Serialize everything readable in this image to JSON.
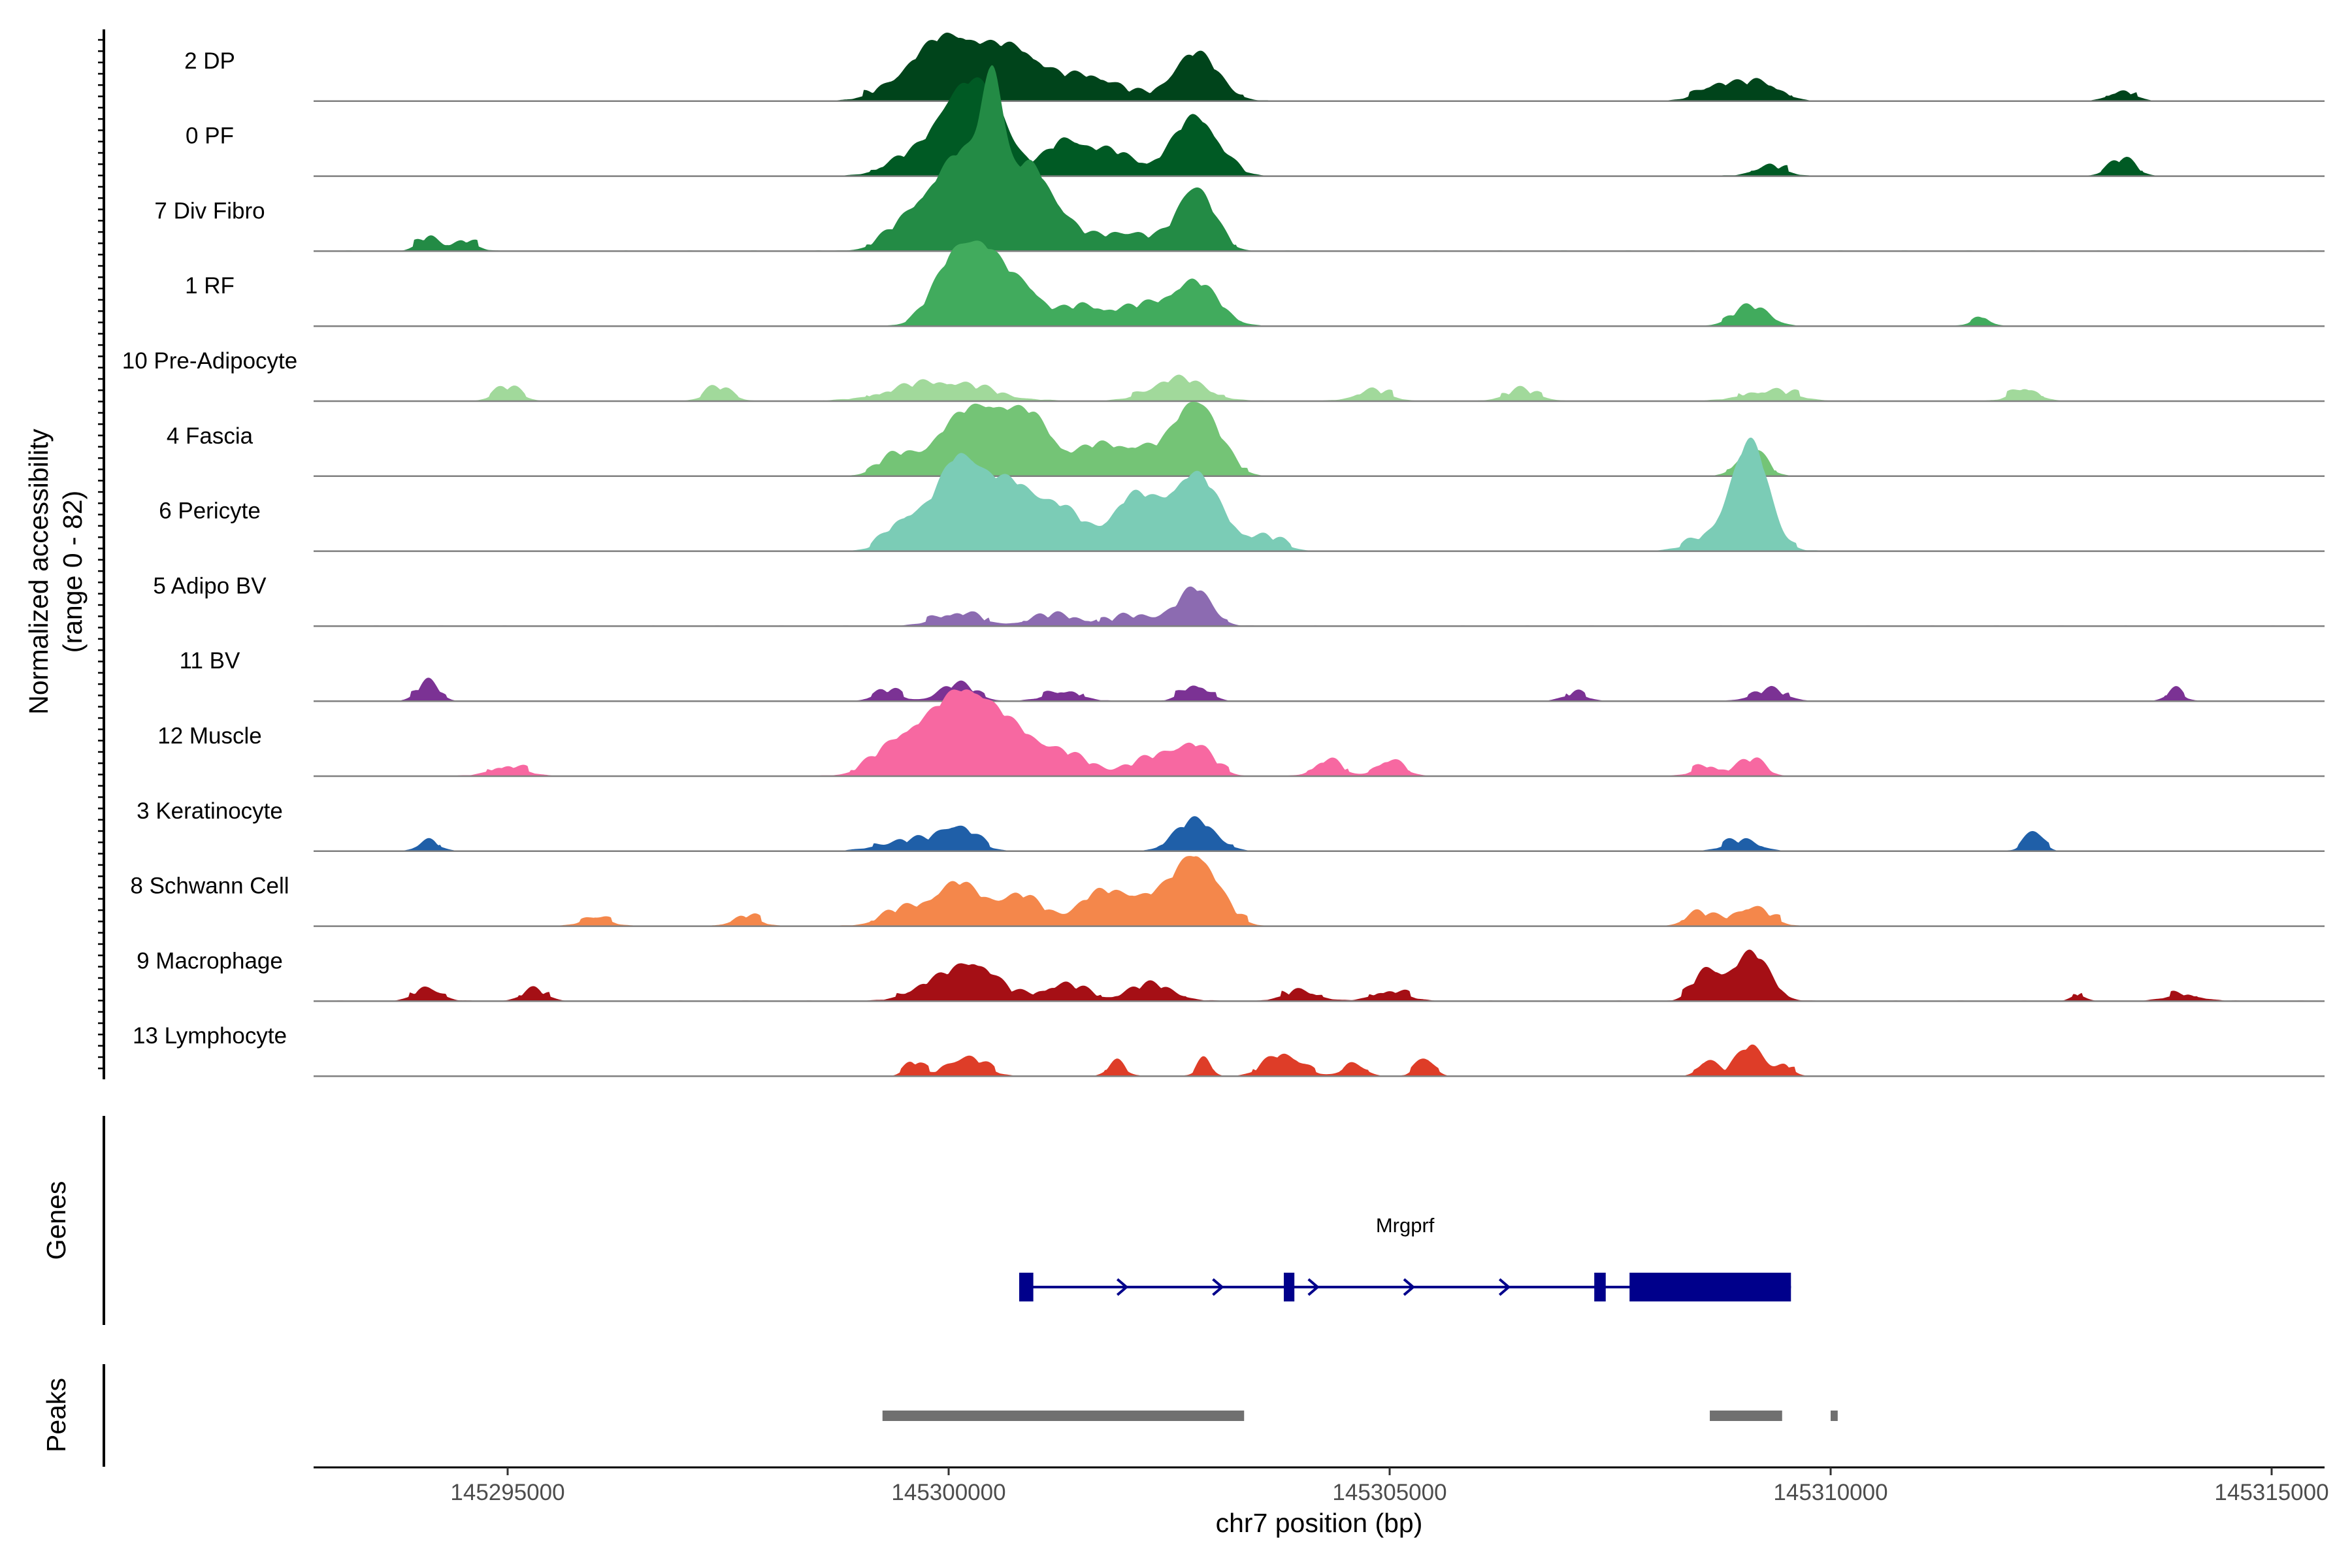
{
  "chart_data": {
    "type": "area",
    "region": {
      "chrom": "chr7",
      "start": 145292800,
      "end": 145315600
    },
    "ylabel": "Normalized accessibility",
    "ylabel_range": "(range 0 - 82)",
    "y_range": [
      0,
      82
    ],
    "xlabel": "chr7 position (bp)",
    "x_ticks": [
      145295000,
      145300000,
      145305000,
      145310000,
      145315000
    ],
    "tracks": [
      {
        "name": "2 DP",
        "color": "#00441b",
        "peaks": [
          [
            145300000,
            420,
            22
          ],
          [
            145300800,
            300,
            14
          ],
          [
            145302800,
            250,
            16
          ],
          [
            145301600,
            320,
            8
          ],
          [
            145308700,
            200,
            5
          ],
          [
            145309200,
            220,
            6
          ],
          [
            145313300,
            150,
            3
          ]
        ]
      },
      {
        "name": "0 PF",
        "color": "#005a24",
        "peaks": [
          [
            145300100,
            260,
            26
          ],
          [
            145300500,
            220,
            20
          ],
          [
            145301300,
            200,
            10
          ],
          [
            145301800,
            300,
            8
          ],
          [
            145302800,
            250,
            20
          ],
          [
            145299500,
            250,
            5
          ],
          [
            145313300,
            150,
            5
          ],
          [
            145309300,
            180,
            3
          ]
        ]
      },
      {
        "name": "7 Div Fibro",
        "color": "#238b45",
        "peaks": [
          [
            145299700,
            300,
            14
          ],
          [
            145300200,
            260,
            30
          ],
          [
            145300500,
            120,
            44
          ],
          [
            145300900,
            220,
            28
          ],
          [
            145301300,
            200,
            8
          ],
          [
            145302000,
            300,
            6
          ],
          [
            145302800,
            200,
            22
          ],
          [
            145294100,
            120,
            4
          ],
          [
            145294500,
            140,
            3
          ]
        ]
      },
      {
        "name": "1 RF",
        "color": "#41ab5d",
        "peaks": [
          [
            145300100,
            250,
            24
          ],
          [
            145300500,
            220,
            18
          ],
          [
            145300900,
            180,
            10
          ],
          [
            145301500,
            250,
            6
          ],
          [
            145302200,
            300,
            6
          ],
          [
            145302800,
            250,
            14
          ],
          [
            145309100,
            200,
            6
          ],
          [
            145311700,
            100,
            3
          ]
        ]
      },
      {
        "name": "10 Pre-Adipocyte",
        "color": "#a1d99b",
        "peaks": [
          [
            145299900,
            500,
            6
          ],
          [
            145302600,
            300,
            7
          ],
          [
            145295000,
            150,
            4
          ],
          [
            145297400,
            150,
            4
          ],
          [
            145306500,
            200,
            3
          ],
          [
            145309300,
            300,
            3
          ],
          [
            145312200,
            150,
            4
          ],
          [
            145304800,
            200,
            3
          ]
        ]
      },
      {
        "name": "4 Fascia",
        "color": "#74c476",
        "peaks": [
          [
            145300100,
            300,
            16
          ],
          [
            145300600,
            300,
            18
          ],
          [
            145301000,
            200,
            12
          ],
          [
            145301700,
            300,
            10
          ],
          [
            145302800,
            250,
            26
          ],
          [
            145309100,
            150,
            9
          ],
          [
            145299400,
            200,
            6
          ],
          [
            145302200,
            200,
            6
          ]
        ]
      },
      {
        "name": "6 Pericyte",
        "color": "#7bccb6",
        "peaks": [
          [
            145300100,
            250,
            30
          ],
          [
            145300700,
            300,
            22
          ],
          [
            145301300,
            250,
            12
          ],
          [
            145302100,
            250,
            18
          ],
          [
            145302800,
            280,
            26
          ],
          [
            145299500,
            200,
            10
          ],
          [
            145309100,
            200,
            34
          ],
          [
            145308800,
            300,
            6
          ],
          [
            145303600,
            200,
            4
          ]
        ]
      },
      {
        "name": "5 Adipo BV",
        "color": "#8c6bb1",
        "peaks": [
          [
            145302800,
            180,
            12
          ],
          [
            145300100,
            250,
            4
          ],
          [
            145301200,
            300,
            3
          ],
          [
            145302200,
            300,
            3
          ]
        ]
      },
      {
        "name": "11 BV",
        "color": "#7b3294",
        "peaks": [
          [
            145294100,
            120,
            6
          ],
          [
            145300100,
            200,
            5
          ],
          [
            145302800,
            150,
            5
          ],
          [
            145299300,
            150,
            3
          ],
          [
            145301300,
            200,
            3
          ],
          [
            145309300,
            200,
            3
          ],
          [
            145313900,
            100,
            3
          ],
          [
            145307100,
            150,
            2
          ]
        ]
      },
      {
        "name": "12 Muscle",
        "color": "#f768a1",
        "peaks": [
          [
            145300100,
            300,
            22
          ],
          [
            145300600,
            350,
            16
          ],
          [
            145299500,
            300,
            12
          ],
          [
            145301300,
            300,
            6
          ],
          [
            145302400,
            300,
            6
          ],
          [
            145302800,
            200,
            8
          ],
          [
            145305000,
            150,
            5
          ],
          [
            145304300,
            150,
            5
          ],
          [
            145309100,
            150,
            5
          ],
          [
            145295000,
            200,
            3
          ],
          [
            145308600,
            150,
            3
          ]
        ]
      },
      {
        "name": "3 Keratinocyte",
        "color": "#1f5fa8",
        "peaks": [
          [
            145300100,
            200,
            8
          ],
          [
            145302800,
            220,
            10
          ],
          [
            145312300,
            100,
            7
          ],
          [
            145299500,
            300,
            3
          ],
          [
            145294100,
            120,
            3
          ],
          [
            145309000,
            200,
            3
          ]
        ]
      },
      {
        "name": "8 Schwann Cell",
        "color": "#f4874b",
        "peaks": [
          [
            145300100,
            250,
            14
          ],
          [
            145300800,
            250,
            10
          ],
          [
            145301700,
            250,
            10
          ],
          [
            145302200,
            250,
            8
          ],
          [
            145302800,
            250,
            24
          ],
          [
            145299500,
            250,
            5
          ],
          [
            145309100,
            200,
            6
          ],
          [
            145308500,
            150,
            4
          ],
          [
            145296000,
            150,
            3
          ],
          [
            145297700,
            150,
            3
          ]
        ]
      },
      {
        "name": "9 Macrophage",
        "color": "#a50f15",
        "peaks": [
          [
            145300300,
            250,
            12
          ],
          [
            145299800,
            250,
            5
          ],
          [
            145301300,
            250,
            5
          ],
          [
            145302300,
            250,
            5
          ],
          [
            145308600,
            150,
            10
          ],
          [
            145309100,
            200,
            16
          ],
          [
            145294100,
            150,
            4
          ],
          [
            145295300,
            150,
            3
          ],
          [
            145305000,
            200,
            3
          ],
          [
            145304000,
            200,
            3
          ],
          [
            145312800,
            80,
            2
          ],
          [
            145314000,
            200,
            2
          ]
        ]
      },
      {
        "name": "13 Lymphocyte",
        "color": "#de3d28",
        "peaks": [
          [
            145300200,
            200,
            6
          ],
          [
            145299600,
            100,
            4
          ],
          [
            145301900,
            100,
            4
          ],
          [
            145302900,
            80,
            5
          ],
          [
            145303800,
            200,
            7
          ],
          [
            145304600,
            120,
            4
          ],
          [
            145305400,
            100,
            6
          ],
          [
            145308600,
            100,
            5
          ],
          [
            145309100,
            150,
            10
          ],
          [
            145309500,
            80,
            3
          ]
        ]
      }
    ],
    "genes": [
      {
        "name": "Mrgprf",
        "strand": "+",
        "start": 145300800,
        "end": 145309550,
        "exons": [
          [
            145300800,
            145300960
          ],
          [
            145303800,
            145303920
          ],
          [
            145307320,
            145307450
          ],
          [
            145307720,
            145309550
          ]
        ],
        "color": "#00008b"
      }
    ],
    "peaks_track": [
      [
        145299250,
        145303350
      ],
      [
        145308630,
        145309450
      ],
      [
        145310000,
        145310080
      ]
    ],
    "peaks_color": "#707070",
    "panel_labels": {
      "genes": "Genes",
      "peaks": "Peaks"
    }
  }
}
